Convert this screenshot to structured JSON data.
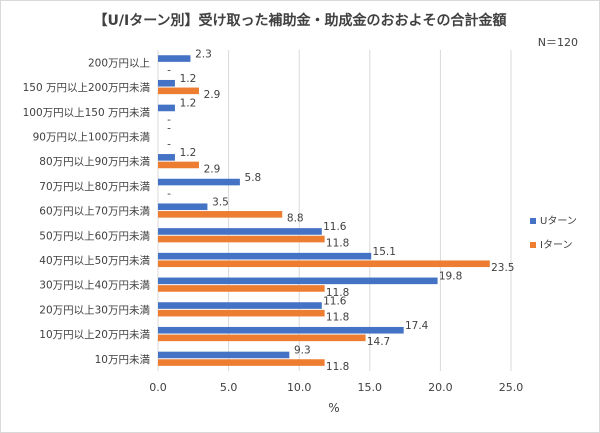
{
  "chart_data": {
    "type": "bar",
    "orientation": "horizontal",
    "title": "【U/Iターン別】受け取った補助金・助成金のおおよその合計金額",
    "note": "N＝120",
    "xlabel": "%",
    "xlim": [
      0,
      25
    ],
    "xticks": [
      "0.0",
      "5.0",
      "10.0",
      "15.0",
      "20.0",
      "25.0"
    ],
    "grid": true,
    "legend_position": "right",
    "categories": [
      "200万円以上",
      "150 万円以上200万円未満",
      "100万円以上150 万円未満",
      "90万円以上100万円未満",
      "80万円以上90万円未満",
      "70万円以上80万円未満",
      "60万円以上70万円未満",
      "50万円以上60万円未満",
      "40万円以上50万円未満",
      "30万円以上40万円未満",
      "20万円以上30万円未満",
      "10万円以上20万円未満",
      "10万円未満"
    ],
    "series": [
      {
        "name": "Uターン",
        "color": "#4472c4",
        "values": [
          2.3,
          1.2,
          1.2,
          0,
          1.2,
          5.8,
          3.5,
          11.6,
          15.1,
          19.8,
          11.6,
          17.4,
          9.3
        ],
        "labels": [
          "2.3",
          "1.2",
          "1.2",
          "-",
          "1.2",
          "5.8",
          "3.5",
          "11.6",
          "15.1",
          "19.8",
          "11.6",
          "17.4",
          "9.3"
        ]
      },
      {
        "name": "Iターン",
        "color": "#ed7d31",
        "values": [
          0,
          2.9,
          0,
          0,
          2.9,
          0,
          8.8,
          11.8,
          23.5,
          11.8,
          11.8,
          14.7,
          11.8
        ],
        "labels": [
          "-",
          "2.9",
          "-",
          "-",
          "2.9",
          "-",
          "8.8",
          "11.8",
          "23.5",
          "11.8",
          "11.8",
          "14.7",
          "11.8"
        ]
      }
    ]
  }
}
